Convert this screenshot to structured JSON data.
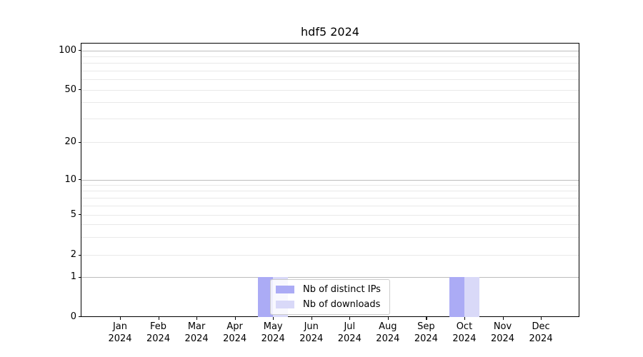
{
  "chart_data": {
    "type": "bar",
    "title": "hdf5 2024",
    "categories": [
      {
        "month": "Jan",
        "year": "2024"
      },
      {
        "month": "Feb",
        "year": "2024"
      },
      {
        "month": "Mar",
        "year": "2024"
      },
      {
        "month": "Apr",
        "year": "2024"
      },
      {
        "month": "May",
        "year": "2024"
      },
      {
        "month": "Jun",
        "year": "2024"
      },
      {
        "month": "Jul",
        "year": "2024"
      },
      {
        "month": "Aug",
        "year": "2024"
      },
      {
        "month": "Sep",
        "year": "2024"
      },
      {
        "month": "Oct",
        "year": "2024"
      },
      {
        "month": "Nov",
        "year": "2024"
      },
      {
        "month": "Dec",
        "year": "2024"
      }
    ],
    "series": [
      {
        "name": "Nb of distinct IPs",
        "color": "#ababf5",
        "values": [
          0,
          0,
          0,
          0,
          1,
          0,
          0,
          0,
          0,
          1,
          0,
          0
        ]
      },
      {
        "name": "Nb of downloads",
        "color": "#d9d9f8",
        "values": [
          0,
          0,
          0,
          0,
          1,
          0,
          0,
          0,
          0,
          1,
          0,
          0
        ]
      }
    ],
    "xlabel": "",
    "ylabel": "",
    "y_axis": {
      "scale": "symlog",
      "ticks": [
        0,
        1,
        2,
        5,
        10,
        20,
        50,
        100
      ],
      "major_grid_values": [
        1,
        10,
        100
      ],
      "minor_ticks": [
        3,
        4,
        6,
        7,
        8,
        9,
        30,
        40,
        60,
        70,
        80,
        90
      ],
      "ylim": [
        0,
        112
      ]
    },
    "grid": "both",
    "legend_position": "lower-center-left"
  }
}
